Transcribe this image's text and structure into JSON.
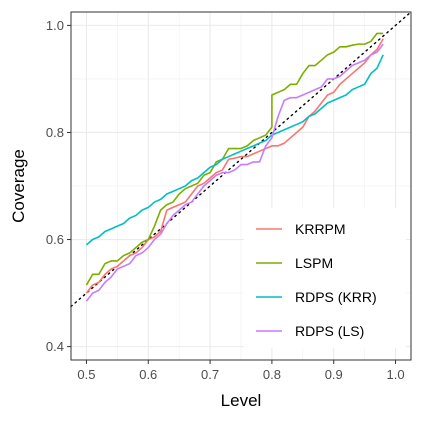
{
  "chart_data": {
    "type": "line",
    "xlabel": "Level",
    "ylabel": "Coverage",
    "xlim": [
      0.475,
      1.025
    ],
    "ylim": [
      0.375,
      1.025
    ],
    "x_ticks": [
      0.5,
      0.6,
      0.7,
      0.8,
      0.9,
      1.0
    ],
    "x_tick_labels": [
      "0.5",
      "0.6",
      "0.7",
      "0.8",
      "0.9",
      "1.0"
    ],
    "y_ticks": [
      0.4,
      0.6,
      0.8,
      1.0
    ],
    "y_tick_labels": [
      "0.4",
      "0.6",
      "0.8",
      "1.0"
    ],
    "grid": true,
    "legend_position": "bottom-right inside",
    "reference_line": {
      "style": "dotted",
      "color": "#000000",
      "x": [
        0.475,
        1.025
      ],
      "y": [
        0.475,
        1.025
      ]
    },
    "series": [
      {
        "name": "KRRPM",
        "color": "#F8766D",
        "x": [
          0.5,
          0.51,
          0.52,
          0.53,
          0.54,
          0.55,
          0.56,
          0.57,
          0.58,
          0.59,
          0.6,
          0.61,
          0.62,
          0.63,
          0.64,
          0.65,
          0.66,
          0.67,
          0.68,
          0.69,
          0.7,
          0.71,
          0.72,
          0.73,
          0.74,
          0.75,
          0.76,
          0.77,
          0.78,
          0.79,
          0.8,
          0.81,
          0.82,
          0.83,
          0.84,
          0.85,
          0.86,
          0.87,
          0.88,
          0.89,
          0.9,
          0.91,
          0.92,
          0.93,
          0.94,
          0.95,
          0.96,
          0.97,
          0.98
        ],
        "y": [
          0.5,
          0.515,
          0.52,
          0.535,
          0.545,
          0.55,
          0.56,
          0.57,
          0.575,
          0.585,
          0.6,
          0.605,
          0.615,
          0.655,
          0.66,
          0.665,
          0.67,
          0.685,
          0.7,
          0.705,
          0.715,
          0.725,
          0.73,
          0.75,
          0.752,
          0.755,
          0.755,
          0.76,
          0.765,
          0.77,
          0.775,
          0.775,
          0.78,
          0.79,
          0.8,
          0.81,
          0.83,
          0.84,
          0.855,
          0.87,
          0.875,
          0.89,
          0.9,
          0.91,
          0.92,
          0.93,
          0.945,
          0.955,
          0.975
        ]
      },
      {
        "name": "LSPM",
        "color": "#7CAE00",
        "x": [
          0.5,
          0.51,
          0.52,
          0.53,
          0.54,
          0.55,
          0.56,
          0.57,
          0.58,
          0.59,
          0.6,
          0.61,
          0.62,
          0.63,
          0.64,
          0.65,
          0.66,
          0.67,
          0.68,
          0.69,
          0.7,
          0.71,
          0.72,
          0.73,
          0.74,
          0.75,
          0.76,
          0.77,
          0.78,
          0.79,
          0.8,
          0.8,
          0.81,
          0.82,
          0.83,
          0.84,
          0.85,
          0.86,
          0.87,
          0.88,
          0.89,
          0.9,
          0.91,
          0.92,
          0.93,
          0.94,
          0.95,
          0.96,
          0.97,
          0.98
        ],
        "y": [
          0.515,
          0.535,
          0.535,
          0.555,
          0.56,
          0.56,
          0.57,
          0.575,
          0.585,
          0.595,
          0.6,
          0.625,
          0.655,
          0.665,
          0.67,
          0.685,
          0.695,
          0.7,
          0.705,
          0.72,
          0.725,
          0.745,
          0.75,
          0.77,
          0.77,
          0.77,
          0.775,
          0.785,
          0.79,
          0.795,
          0.81,
          0.87,
          0.875,
          0.88,
          0.89,
          0.89,
          0.91,
          0.925,
          0.925,
          0.935,
          0.945,
          0.95,
          0.96,
          0.96,
          0.963,
          0.965,
          0.965,
          0.97,
          0.985,
          0.985
        ]
      },
      {
        "name": "RDPS (KRR)",
        "color": "#00BFC4",
        "x": [
          0.5,
          0.51,
          0.52,
          0.53,
          0.54,
          0.55,
          0.56,
          0.57,
          0.58,
          0.59,
          0.6,
          0.61,
          0.62,
          0.63,
          0.64,
          0.65,
          0.66,
          0.67,
          0.68,
          0.69,
          0.7,
          0.71,
          0.72,
          0.73,
          0.74,
          0.75,
          0.76,
          0.77,
          0.78,
          0.79,
          0.8,
          0.81,
          0.82,
          0.83,
          0.84,
          0.85,
          0.86,
          0.87,
          0.88,
          0.89,
          0.9,
          0.91,
          0.92,
          0.93,
          0.94,
          0.95,
          0.96,
          0.97,
          0.98
        ],
        "y": [
          0.59,
          0.6,
          0.605,
          0.615,
          0.62,
          0.625,
          0.63,
          0.64,
          0.645,
          0.655,
          0.66,
          0.67,
          0.675,
          0.685,
          0.69,
          0.695,
          0.7,
          0.71,
          0.715,
          0.725,
          0.735,
          0.74,
          0.75,
          0.755,
          0.76,
          0.765,
          0.77,
          0.775,
          0.78,
          0.785,
          0.795,
          0.8,
          0.805,
          0.81,
          0.815,
          0.82,
          0.83,
          0.835,
          0.845,
          0.855,
          0.86,
          0.865,
          0.87,
          0.88,
          0.885,
          0.89,
          0.91,
          0.92,
          0.945
        ]
      },
      {
        "name": "RDPS (LS)",
        "color": "#C77CFF",
        "x": [
          0.5,
          0.51,
          0.52,
          0.53,
          0.54,
          0.55,
          0.56,
          0.57,
          0.58,
          0.59,
          0.6,
          0.61,
          0.62,
          0.63,
          0.64,
          0.65,
          0.66,
          0.67,
          0.68,
          0.69,
          0.7,
          0.71,
          0.72,
          0.73,
          0.74,
          0.75,
          0.76,
          0.77,
          0.78,
          0.79,
          0.8,
          0.81,
          0.82,
          0.83,
          0.84,
          0.85,
          0.86,
          0.87,
          0.88,
          0.89,
          0.9,
          0.91,
          0.92,
          0.93,
          0.94,
          0.95,
          0.96,
          0.97,
          0.98
        ],
        "y": [
          0.485,
          0.5,
          0.505,
          0.52,
          0.53,
          0.545,
          0.55,
          0.555,
          0.57,
          0.575,
          0.585,
          0.6,
          0.61,
          0.63,
          0.645,
          0.655,
          0.665,
          0.67,
          0.685,
          0.7,
          0.71,
          0.72,
          0.725,
          0.725,
          0.73,
          0.74,
          0.74,
          0.745,
          0.745,
          0.775,
          0.79,
          0.83,
          0.86,
          0.865,
          0.865,
          0.87,
          0.875,
          0.88,
          0.885,
          0.9,
          0.9,
          0.905,
          0.915,
          0.925,
          0.93,
          0.935,
          0.945,
          0.95,
          0.965
        ]
      }
    ]
  }
}
